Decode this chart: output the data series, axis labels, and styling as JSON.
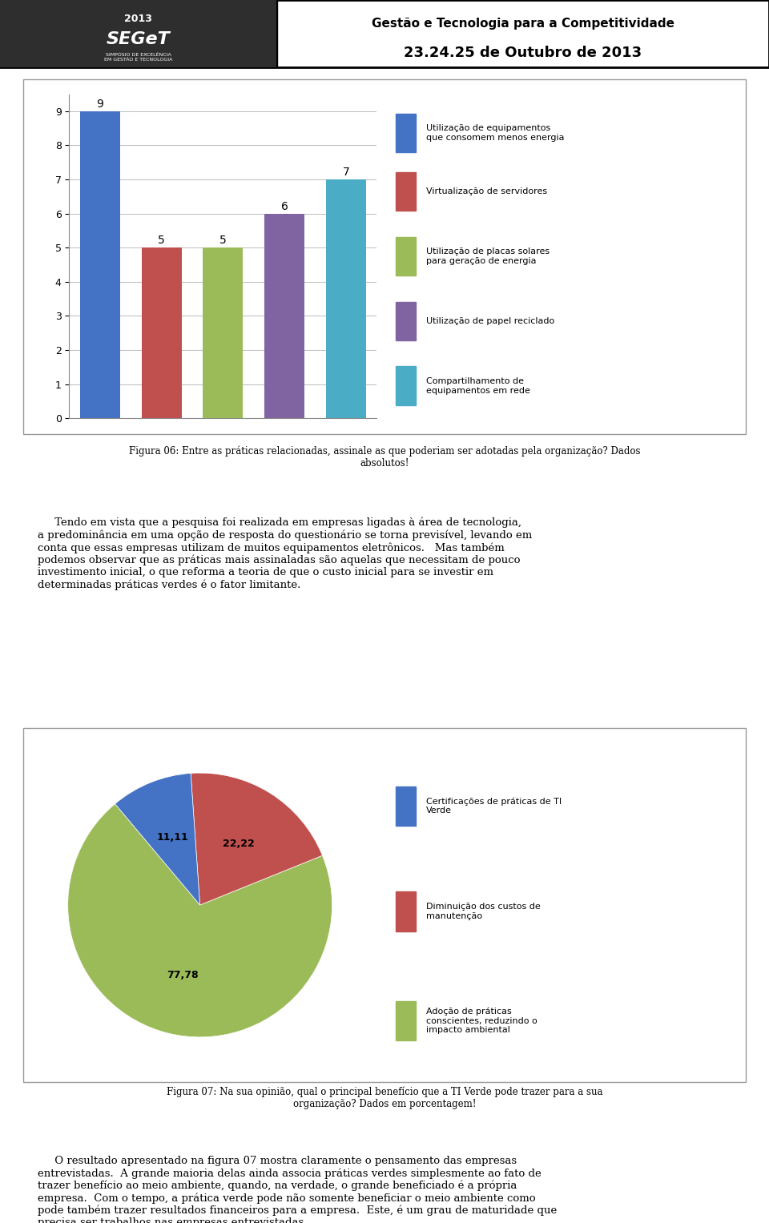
{
  "header_title": "Gestão e Tecnologia para a Competitividade",
  "header_date": "23.24.25 de Outubro de 2013",
  "bar_values": [
    9,
    5,
    5,
    6,
    7
  ],
  "bar_colors": [
    "#4472C4",
    "#C0504D",
    "#9BBB59",
    "#8064A2",
    "#4BACC6"
  ],
  "bar_labels": [
    "Utilização de equipamentos\nque consomem menos energia",
    "Virtualização de servidores",
    "Utilização de placas solares\npara geração de energia",
    "Utilização de papel reciclado",
    "Compartilhamento de\nequipamentos em rede"
  ],
  "bar_ylim": [
    0,
    9.5
  ],
  "bar_yticks": [
    0,
    1,
    2,
    3,
    4,
    5,
    6,
    7,
    8,
    9
  ],
  "fig06_caption": "Figura 06: Entre as práticas relacionadas, assinale as que poderiam ser adotadas pela organização? Dados\nabsolutos!",
  "paragraph1": "     Tendo em vista que a pesquisa foi realizada em empresas ligadas à área de tecnologia,\na predominância em uma opção de resposta do questionário se torna previsível, levando em\nconta que essas empresas utilizam de muitos equipamentos eletrônicos.   Mas também\npodemos observar que as práticas mais assinaladas são aquelas que necessitam de pouco\ninvestimento inicial, o que reforma a teoria de que o custo inicial para se investir em\ndeterminadas práticas verdes é o fator limitante.",
  "pie_values": [
    77.78,
    22.22,
    11.11
  ],
  "pie_colors": [
    "#9BBB59",
    "#C0504D",
    "#4472C4"
  ],
  "pie_labels": [
    "77,78",
    "22,22",
    "11,11"
  ],
  "pie_legend_colors": [
    "#4472C4",
    "#C0504D",
    "#9BBB59"
  ],
  "pie_legend_labels": [
    "Certificações de práticas de TI\nVerde",
    "Diminuição dos custos de\nmanutenção",
    "Adoção de práticas\nconscientes, reduzindo o\nimpacto ambiental"
  ],
  "fig07_caption": "Figura 07: Na sua opinião, qual o principal benefício que a TI Verde pode trazer para a sua\norganização? Dados em porcentagem!",
  "paragraph2": "     O resultado apresentado na figura 07 mostra claramente o pensamento das empresas\nentrevistadas.  A grande maioria delas ainda associa práticas verdes simplesmente ao fato de\ntrazer benefício ao meio ambiente, quando, na verdade, o grande beneficiado é a própria\nempresa.  Com o tempo, a prática verde pode não somente beneficiar o meio ambiente como\npode também trazer resultados financeiros para a empresa.  Este, é um grau de maturidade que\nprecisa ser trabalhos nas empresas entrevistadas."
}
